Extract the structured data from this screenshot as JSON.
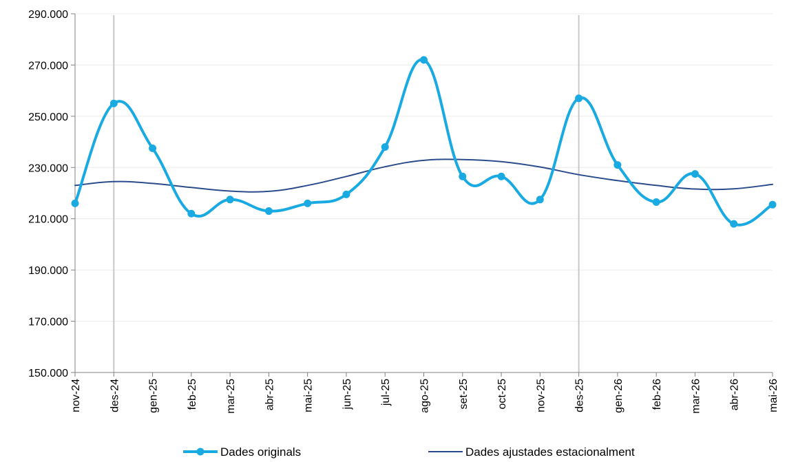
{
  "chart_data": {
    "type": "line",
    "categories": [
      "nov-24",
      "des-24",
      "gen-25",
      "feb-25",
      "mar-25",
      "abr-25",
      "mai-25",
      "jun-25",
      "jul-25",
      "ago-25",
      "set-25",
      "oct-25",
      "nov-25",
      "des-25",
      "gen-26",
      "feb-26",
      "mar-26",
      "abr-26",
      "mai-26"
    ],
    "ylim": [
      150000,
      290000
    ],
    "yticks": [
      150000,
      170000,
      190000,
      210000,
      230000,
      250000,
      270000,
      290000
    ],
    "ytick_labels": [
      "150.000",
      "170.000",
      "190.000",
      "210.000",
      "230.000",
      "250.000",
      "270.000",
      "290.000"
    ],
    "grid": true,
    "vertical_markers": [
      "des-24",
      "des-25"
    ],
    "legend_position": "bottom",
    "series": [
      {
        "name": "Dades originals",
        "color": "#1AAAE2",
        "markers": true,
        "values": [
          216000,
          255000,
          237500,
          212000,
          217500,
          213000,
          216000,
          219500,
          238000,
          272000,
          226500,
          226500,
          217500,
          257000,
          231000,
          216500,
          227500,
          208000,
          215500
        ]
      },
      {
        "name": "Dades ajustades estacionalment",
        "color": "#2B4C8C",
        "markers": false,
        "values": [
          223000,
          224500,
          223800,
          222200,
          220800,
          220700,
          223000,
          226500,
          230300,
          232800,
          233100,
          232300,
          230200,
          227200,
          224900,
          223000,
          221600,
          221700,
          223400
        ]
      }
    ]
  }
}
